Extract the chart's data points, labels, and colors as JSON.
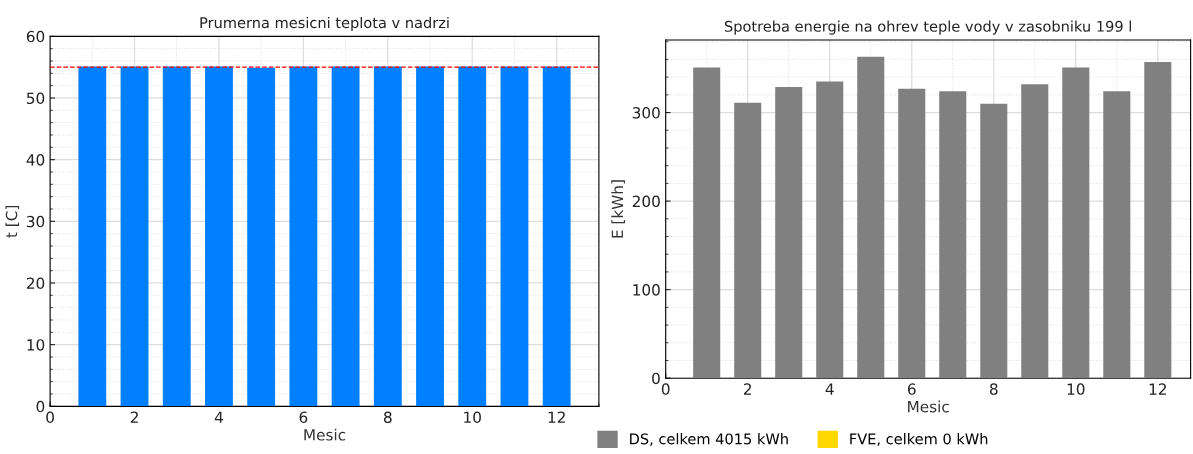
{
  "chart_data": [
    {
      "type": "bar",
      "title": "Prumerna mesicni teplota v nadrzi",
      "xlabel": "Mesic",
      "ylabel": "t [C]",
      "x": [
        1,
        2,
        3,
        4,
        5,
        6,
        7,
        8,
        9,
        10,
        11,
        12
      ],
      "series": [
        {
          "color": "#0080ff",
          "values": [
            55.1,
            55.1,
            55.1,
            55.1,
            54.9,
            55.1,
            55.1,
            55.1,
            55.1,
            55.1,
            55.1,
            55.1
          ]
        }
      ],
      "xlim": [
        0,
        13
      ],
      "xticks": [
        0,
        2,
        4,
        6,
        8,
        10,
        12
      ],
      "ylim": [
        0,
        60
      ],
      "yticks": [
        0,
        10,
        20,
        30,
        40,
        50,
        60
      ],
      "ref_lines": [
        {
          "axis": "y",
          "value": 55,
          "color": "#ff0000",
          "line_style": "dashed"
        }
      ],
      "grid": true,
      "legend": false
    },
    {
      "type": "bar",
      "title": "Spotreba energie na ohrev teple vody v zasobniku 199 l",
      "xlabel": "Mesic",
      "ylabel": "E [kWh]",
      "x": [
        1,
        2,
        3,
        4,
        5,
        6,
        7,
        8,
        9,
        10,
        11,
        12
      ],
      "stacked": true,
      "series": [
        {
          "name": "DS, celkem 4015 kWh",
          "color": "#808080",
          "values": [
            351,
            311,
            329,
            335,
            363,
            327,
            324,
            310,
            332,
            351,
            324,
            357
          ]
        },
        {
          "name": "FVE, celkem 0 kWh",
          "color": "#ffd700",
          "values": [
            0,
            0,
            0,
            0,
            0,
            0,
            0,
            0,
            0,
            0,
            0,
            0
          ]
        }
      ],
      "xlim": [
        0,
        12.8
      ],
      "xticks": [
        0,
        2,
        4,
        6,
        8,
        10,
        12
      ],
      "ylim": [
        0,
        382
      ],
      "yticks": [
        0,
        100,
        200,
        300
      ],
      "grid": true,
      "legend": "bottom left"
    }
  ]
}
